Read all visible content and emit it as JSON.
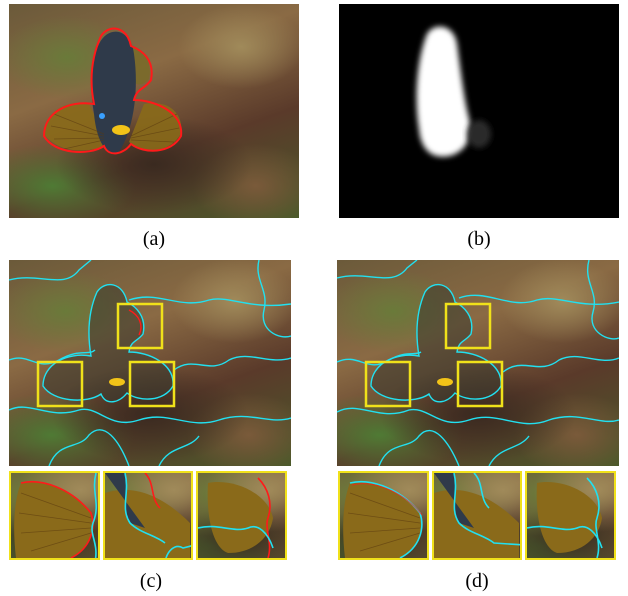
{
  "captions": {
    "a": "(a)",
    "b": "(b)",
    "c": "(c)",
    "d": "(d)"
  },
  "colors": {
    "gt_contour": "#ff1a1a",
    "superpixel_boundary": "#22e0f0",
    "highlight_box": "#f0e11a",
    "mask_foreground": "#ffffff",
    "mask_background": "#000000"
  }
}
